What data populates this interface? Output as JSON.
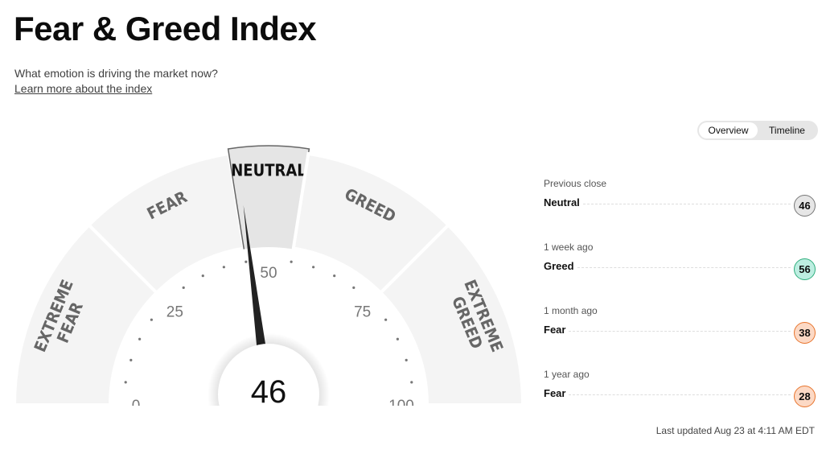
{
  "title": "Fear & Greed Index",
  "subtitle": "What emotion is driving the market now?",
  "learn_link": "Learn more about the index",
  "toggle": {
    "overview": "Overview",
    "timeline": "Timeline",
    "active": "Overview"
  },
  "gauge": {
    "value": 46,
    "value_text": "46",
    "segments": [
      {
        "label": [
          "EXTREME",
          "FEAR"
        ],
        "from": 0,
        "to": 25
      },
      {
        "label": [
          "FEAR"
        ],
        "from": 25,
        "to": 45
      },
      {
        "label": [
          "NEUTRAL"
        ],
        "from": 45,
        "to": 55,
        "active": true
      },
      {
        "label": [
          "GREED"
        ],
        "from": 55,
        "to": 75
      },
      {
        "label": [
          "EXTREME",
          "GREED"
        ],
        "from": 75,
        "to": 100
      }
    ],
    "tick_labels": [
      "0",
      "25",
      "50",
      "75",
      "100"
    ]
  },
  "history": [
    {
      "label": "Previous close",
      "rating": "Neutral",
      "value": "46",
      "bg": "#e6e6e6",
      "border": "#777"
    },
    {
      "label": "1 week ago",
      "rating": "Greed",
      "value": "56",
      "bg": "#bdeee1",
      "border": "#2fae7d"
    },
    {
      "label": "1 month ago",
      "rating": "Fear",
      "value": "38",
      "bg": "#fcd9c5",
      "border": "#e8742c"
    },
    {
      "label": "1 year ago",
      "rating": "Fear",
      "value": "28",
      "bg": "#fcd9c5",
      "border": "#e8742c"
    }
  ],
  "last_updated": "Last updated Aug 23 at 4:11 AM EDT"
}
